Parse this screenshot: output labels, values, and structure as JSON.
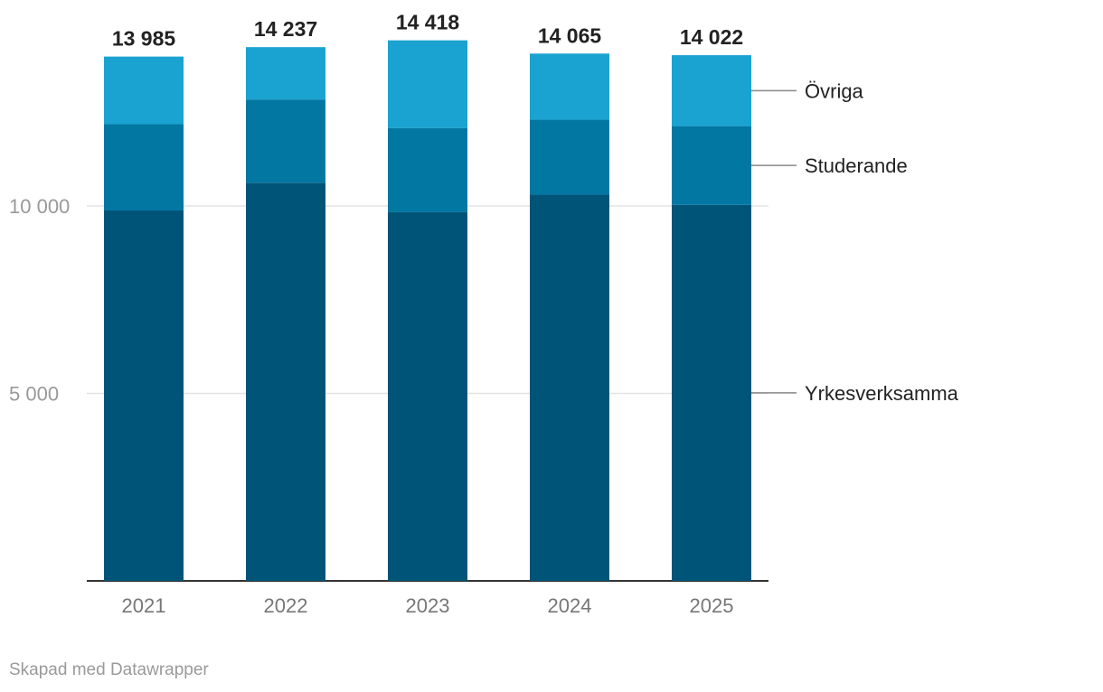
{
  "chart_data": {
    "type": "bar",
    "stacked": true,
    "categories": [
      "2021",
      "2022",
      "2023",
      "2024",
      "2025"
    ],
    "series": [
      {
        "name": "Yrkesverksamma",
        "color": "#005478",
        "values": [
          9880,
          10620,
          9840,
          10300,
          10030
        ]
      },
      {
        "name": "Studerande",
        "color": "#0177a2",
        "values": [
          2300,
          2220,
          2240,
          2000,
          2100
        ]
      },
      {
        "name": "Övriga",
        "color": "#1aa3d0",
        "values": [
          1805,
          1397,
          2338,
          1765,
          1892
        ]
      }
    ],
    "totals": [
      "13 985",
      "14 237",
      "14 418",
      "14 065",
      "14 022"
    ],
    "y_ticks": [
      {
        "value": 5000,
        "label": "5 000"
      },
      {
        "value": 10000,
        "label": "10 000"
      }
    ],
    "ylim": [
      0,
      15000
    ],
    "grid": true,
    "legend": "right, labels aligned to series segments"
  },
  "footer": {
    "credit": "Skapad med Datawrapper"
  }
}
